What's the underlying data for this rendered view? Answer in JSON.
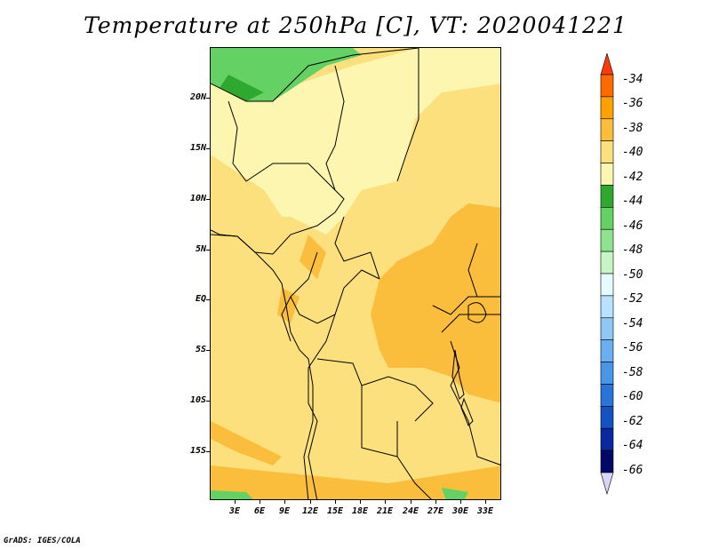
{
  "title": "Temperature at 250hPa [C], VT: 2020041221",
  "credit": "GrADS: IGES/COLA",
  "y_axis": [
    "20N",
    "15N",
    "10N",
    "5N",
    "EQ",
    "5S",
    "10S",
    "15S"
  ],
  "x_axis": [
    "3E",
    "6E",
    "9E",
    "12E",
    "15E",
    "18E",
    "21E",
    "24E",
    "27E",
    "30E",
    "33E"
  ],
  "colorbar": {
    "labels": [
      "-34",
      "-36",
      "-38",
      "-40",
      "-42",
      "-44",
      "-46",
      "-48",
      "-50",
      "-52",
      "-54",
      "-56",
      "-58",
      "-60",
      "-62",
      "-64",
      "-66"
    ],
    "colors": [
      "#ff3a0a",
      "#ff6a00",
      "#ffa100",
      "#fbbd3c",
      "#fbe07d",
      "#fdf6b0",
      "#2ea82e",
      "#63d163",
      "#8fe38f",
      "#c8f5c8",
      "#e6fbff",
      "#b8e2ff",
      "#8ec8f5",
      "#6ab0f0",
      "#4896e8",
      "#2a74d8",
      "#1452c2",
      "#0a28a0",
      "#000a66",
      "#d8d6f5"
    ]
  },
  "map": {
    "field_colors": {
      "light_yellow": "#fdf6b0",
      "yellow": "#fbe07d",
      "light_orange": "#fbbd3c",
      "green": "#63d163",
      "dark_green": "#2ea82e"
    }
  }
}
